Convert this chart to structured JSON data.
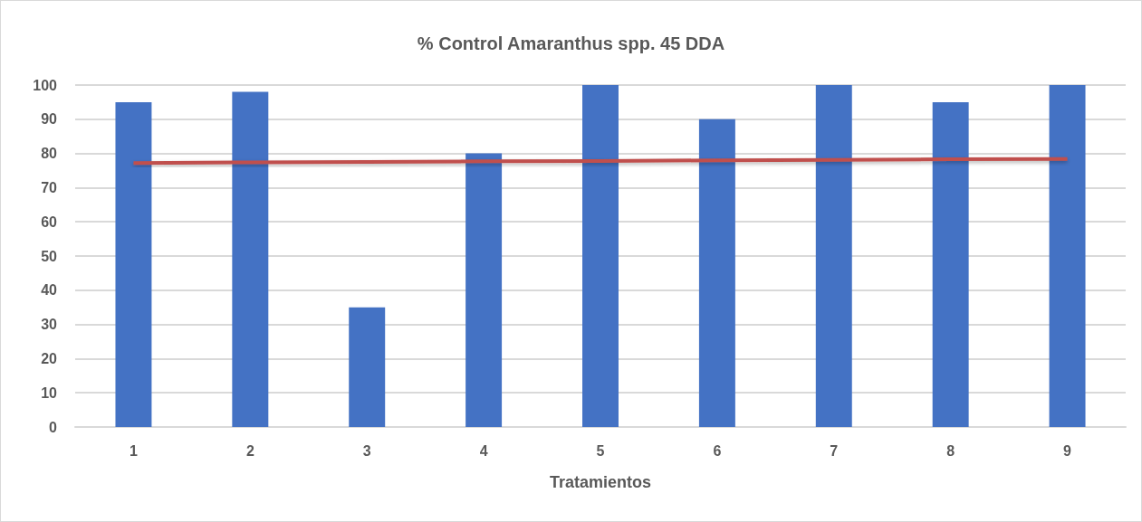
{
  "chart_data": {
    "type": "bar",
    "title": "% Control Amaranthus spp. 45 DDA",
    "xlabel": "Tratamientos",
    "categories": [
      "1",
      "2",
      "3",
      "4",
      "5",
      "6",
      "7",
      "8",
      "9"
    ],
    "series": [
      {
        "color": "#4472c4",
        "values": [
          95,
          98,
          35,
          80,
          100,
          90,
          100,
          95,
          100
        ]
      },
      {
        "type": "line",
        "color": "#c0504d",
        "values": [
          77.2,
          77.4,
          77.5,
          77.7,
          77.8,
          78.0,
          78.1,
          78.3,
          78.4
        ]
      }
    ],
    "ylim": [
      0,
      100
    ],
    "yticks": [
      0,
      10,
      20,
      30,
      40,
      50,
      60,
      70,
      80,
      90,
      100
    ],
    "grid": "y"
  }
}
